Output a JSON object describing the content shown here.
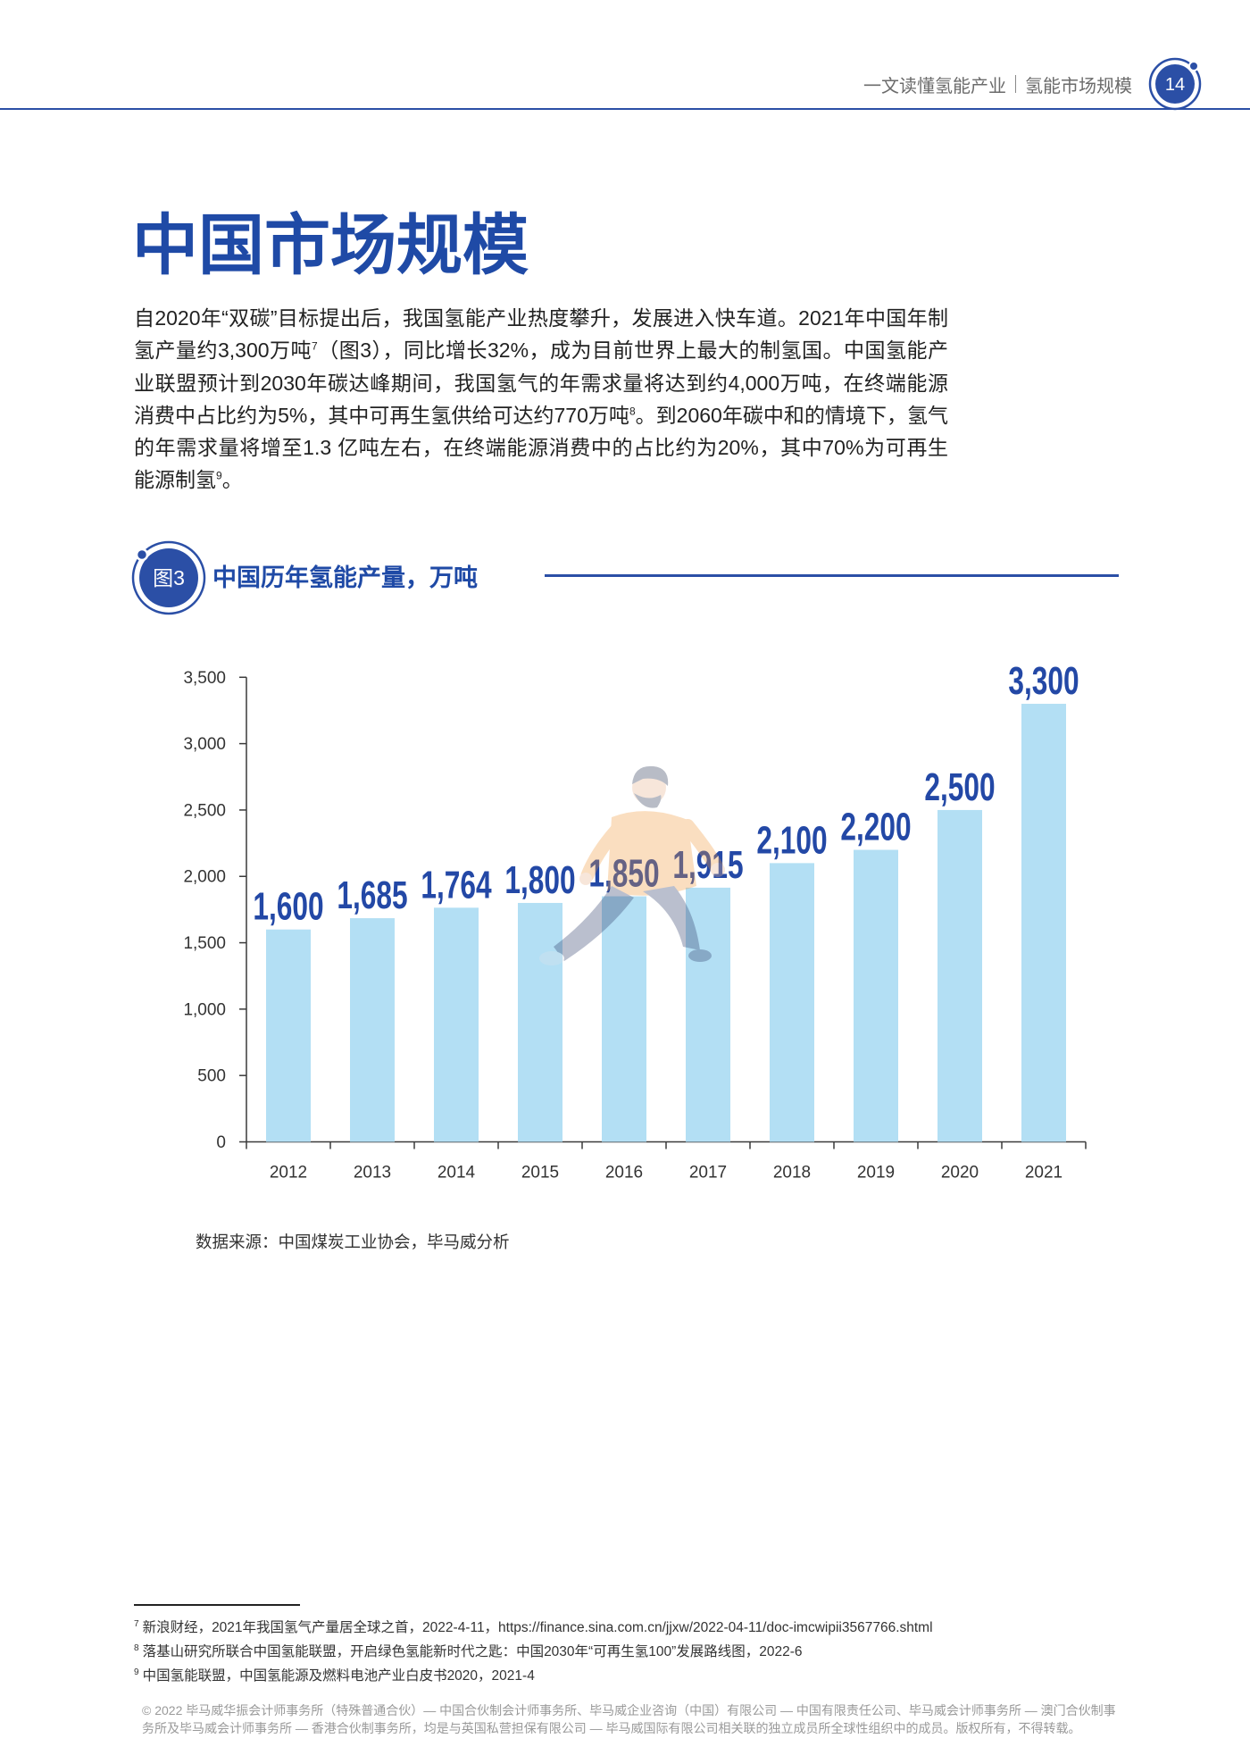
{
  "header": {
    "breadcrumb": [
      "一文读懂氢能产业",
      "氢能市场规模"
    ],
    "page_number": "14"
  },
  "title": "中国市场规模",
  "intro": {
    "text_1": "自2020年“双碳”目标提出后，我国氢能产业热度攀升，发展进入快车道。2021年中国年制氢产量约3,300万吨",
    "ref_1": "7",
    "text_2": "（图3），同比增长32%，成为目前世界上最大的制氢国。中国氢能产业联盟预计到2030年碳达峰期间，我国氢气的年需求量将达到约4,000万吨，在终端能源消费中占比约为5%，其中可再生氢供给可达约770万吨",
    "ref_2": "8",
    "text_3": "。到2060年碳中和的情境下，氢气的年需求量将增至1.3 亿吨左右，在终端能源消费中的占比约为20%，其中70%为可再生能源制氢",
    "ref_3": "9",
    "text_4": "。"
  },
  "figure": {
    "label": "图3",
    "source": "数据来源：中国煤炭工业协会，毕马威分析"
  },
  "chart_data": {
    "type": "bar",
    "title": "中国历年氢能产量，万吨",
    "xlabel": "",
    "ylabel": "",
    "categories": [
      "2012",
      "2013",
      "2014",
      "2015",
      "2016",
      "2017",
      "2018",
      "2019",
      "2020",
      "2021"
    ],
    "values": [
      1600,
      1685,
      1764,
      1800,
      1850,
      1915,
      2100,
      2200,
      2500,
      3300
    ],
    "value_labels": [
      "1,600",
      "1,685",
      "1,764",
      "1,800",
      "1,850",
      "1,915",
      "2,100",
      "2,200",
      "2,500",
      "3,300"
    ],
    "ylim": [
      0,
      3500
    ],
    "y_ticks": [
      0,
      500,
      1000,
      1500,
      2000,
      2500,
      3000,
      3500
    ],
    "y_tick_labels": [
      "0",
      "500",
      "1,000",
      "1,500",
      "2,000",
      "2,500",
      "3,000",
      "3,500"
    ],
    "grid": false,
    "legend": "none",
    "bar_color": "#b3dff4",
    "label_color": "#2348a6"
  },
  "footnotes": [
    {
      "ref": "7",
      "text": "新浪财经，2021年我国氢气产量居全球之首，2022-4-11，https://finance.sina.com.cn/jjxw/2022-04-11/doc-imcwipii3567766.shtml"
    },
    {
      "ref": "8",
      "text": "落基山研究所联合中国氢能联盟，开启绿色氢能新时代之匙：中国2030年“可再生氢100”发展路线图，2022-6"
    },
    {
      "ref": "9",
      "text": "中国氢能联盟，中国氢能源及燃料电池产业白皮书2020，2021-4"
    }
  ],
  "copyright": "© 2022 毕马威华振会计师事务所（特殊普通合伙）— 中国合伙制会计师事务所、毕马威企业咨询（中国）有限公司 — 中国有限责任公司、毕马威会计师事务所 — 澳门合伙制事务所及毕马威会计师事务所 — 香港合伙制事务所，均是与英国私营担保有限公司 — 毕马威国际有限公司相关联的独立成员所全球性组织中的成员。版权所有，不得转载。",
  "colors": {
    "brand_blue": "#1f4aa6",
    "rule_blue": "#2b4fa6",
    "body_text": "#222222",
    "muted_text": "#6b6b6b"
  }
}
